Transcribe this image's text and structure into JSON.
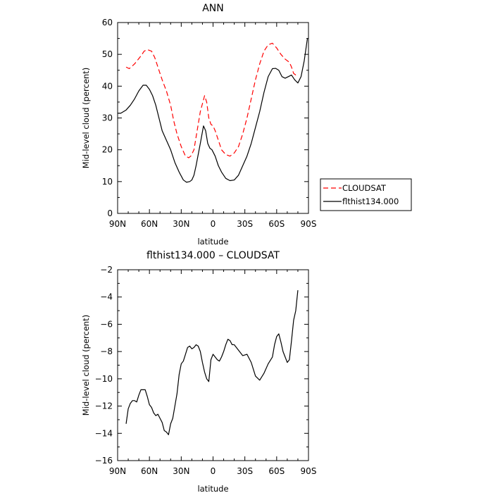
{
  "chart_data": [
    {
      "type": "line",
      "title": "ANN",
      "xlabel": "latitude",
      "ylabel": "Mid-level cloud (percent)",
      "xlim": [
        -90,
        90
      ],
      "ylim": [
        0,
        60
      ],
      "x_ticks": [
        -90,
        -60,
        -30,
        0,
        30,
        60,
        90
      ],
      "x_tick_labels": [
        "90N",
        "60N",
        "30N",
        "0",
        "30S",
        "60S",
        "90S"
      ],
      "y_ticks": [
        0,
        10,
        20,
        30,
        40,
        50,
        60
      ],
      "y_tick_labels": [
        "0",
        "10",
        "20",
        "30",
        "40",
        "50",
        "60"
      ],
      "legend_position": "right",
      "series": [
        {
          "name": "CLOUDSAT",
          "color": "#ff0000",
          "dash": "dashed",
          "x": [
            -82,
            -79,
            -74,
            -68,
            -65,
            -62,
            -58,
            -55,
            -52,
            -48,
            -44,
            -40,
            -37,
            -34,
            -30,
            -26,
            -23,
            -21,
            -18,
            -15,
            -12,
            -8,
            -6,
            -4,
            -2,
            0,
            2,
            5,
            8,
            12,
            16,
            20,
            24,
            28,
            32,
            36,
            40,
            44,
            48,
            52,
            56,
            60,
            64,
            68,
            72,
            74,
            76,
            78,
            80
          ],
          "y": [
            46,
            45.5,
            47,
            49.5,
            51,
            51.5,
            51,
            49,
            46,
            42,
            38.5,
            34,
            29,
            25,
            21,
            18,
            17.5,
            18,
            20,
            26,
            32,
            37,
            35,
            30,
            28,
            27.5,
            26,
            23,
            20,
            18.5,
            18,
            19,
            21,
            25,
            30,
            36,
            42,
            47,
            51,
            53,
            53.5,
            52,
            50,
            48.5,
            47.5,
            46,
            44,
            43.5,
            43
          ]
        },
        {
          "name": "flthist134.000",
          "color": "#000000",
          "dash": "solid",
          "x": [
            -90,
            -87,
            -82,
            -78,
            -74,
            -70,
            -66,
            -63,
            -60,
            -57,
            -54,
            -51,
            -48,
            -44,
            -40,
            -36,
            -32,
            -28,
            -25,
            -22,
            -20,
            -18,
            -16,
            -12,
            -9,
            -7,
            -5,
            -3,
            -1,
            2,
            5,
            8,
            12,
            16,
            20,
            24,
            28,
            32,
            36,
            40,
            44,
            48,
            52,
            56,
            59,
            62,
            65,
            68,
            71,
            74,
            77,
            80,
            83,
            86,
            89
          ],
          "y": [
            31.5,
            31.5,
            32.5,
            34,
            36,
            38.5,
            40.3,
            40.3,
            39,
            37,
            34,
            30,
            26,
            23,
            20,
            16,
            13,
            10.5,
            9.8,
            10,
            10.5,
            12,
            15,
            22,
            27.5,
            26,
            22,
            20.5,
            20,
            18,
            15,
            13,
            11,
            10.3,
            10.5,
            12,
            15,
            18,
            22,
            27,
            32,
            38,
            43,
            45.5,
            45.6,
            45,
            43,
            42.5,
            43,
            43.5,
            42,
            41,
            43,
            48,
            55
          ]
        }
      ]
    },
    {
      "type": "line",
      "title": "flthist134.000 – CLOUDSAT",
      "xlabel": "latitude",
      "ylabel": "Mid-level cloud (percent)",
      "xlim": [
        -90,
        90
      ],
      "ylim": [
        -16,
        -2
      ],
      "x_ticks": [
        -90,
        -60,
        -30,
        0,
        30,
        60,
        90
      ],
      "x_tick_labels": [
        "90N",
        "60N",
        "30N",
        "0",
        "30S",
        "60S",
        "90S"
      ],
      "y_ticks": [
        -16,
        -14,
        -12,
        -10,
        -8,
        -6,
        -4,
        -2
      ],
      "y_tick_labels": [
        "−16",
        "−14",
        "−12",
        "−10",
        "−8",
        "−6",
        "−4",
        "−2"
      ],
      "series": [
        {
          "name": "",
          "color": "#000000",
          "dash": "solid",
          "x": [
            -82,
            -80,
            -78,
            -76,
            -74,
            -72,
            -70,
            -68,
            -66,
            -64,
            -62,
            -60,
            -58,
            -56,
            -54,
            -52,
            -50,
            -48,
            -46,
            -44,
            -42,
            -40,
            -38,
            -36,
            -34,
            -32,
            -30,
            -28,
            -26,
            -24,
            -22,
            -20,
            -18,
            -16,
            -14,
            -12,
            -10,
            -8,
            -6,
            -4,
            -2,
            0,
            2,
            4,
            6,
            8,
            10,
            12,
            14,
            16,
            18,
            20,
            24,
            28,
            32,
            36,
            40,
            44,
            48,
            52,
            56,
            58,
            60,
            62,
            64,
            66,
            68,
            70,
            72,
            74,
            76,
            78,
            80
          ],
          "y": [
            -13.3,
            -12.2,
            -11.8,
            -11.6,
            -11.6,
            -11.7,
            -11.2,
            -10.8,
            -10.8,
            -10.8,
            -11.3,
            -11.9,
            -12.1,
            -12.5,
            -12.7,
            -12.6,
            -12.9,
            -13.2,
            -13.8,
            -13.9,
            -14.1,
            -13.3,
            -12.9,
            -12.0,
            -11.1,
            -9.7,
            -8.9,
            -8.7,
            -8.2,
            -7.7,
            -7.6,
            -7.8,
            -7.7,
            -7.5,
            -7.6,
            -8.0,
            -8.8,
            -9.5,
            -10.0,
            -10.2,
            -8.6,
            -8.2,
            -8.4,
            -8.6,
            -8.7,
            -8.4,
            -8.0,
            -7.5,
            -7.1,
            -7.2,
            -7.5,
            -7.5,
            -7.9,
            -8.3,
            -8.2,
            -8.8,
            -9.8,
            -10.1,
            -9.6,
            -8.9,
            -8.4,
            -7.5,
            -6.9,
            -6.7,
            -7.3,
            -8.0,
            -8.4,
            -8.8,
            -8.6,
            -7.2,
            -5.7,
            -5.0,
            -3.5
          ]
        }
      ]
    }
  ]
}
